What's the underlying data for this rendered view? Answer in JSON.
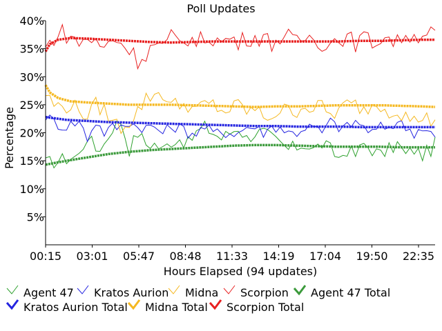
{
  "chart_data": {
    "type": "line",
    "title": "Poll Updates",
    "xlabel": "Hours Elapsed (94 updates)",
    "ylabel": "Percentage",
    "xlim": [
      0,
      93
    ],
    "ylim": [
      0,
      40
    ],
    "grid": false,
    "legend_placement": "bottom",
    "x_tick_labels": [
      "00:15",
      "03:01",
      "05:47",
      "08:48",
      "11:33",
      "14:19",
      "17:04",
      "19:50",
      "22:35"
    ],
    "y_tick_labels": [
      "5%",
      "10%",
      "15%",
      "20%",
      "25%",
      "30%",
      "35%",
      "40%"
    ],
    "y_tick_values": [
      5,
      10,
      15,
      20,
      25,
      30,
      35,
      40
    ],
    "series": [
      {
        "name": "Agent 47",
        "style": "update",
        "color": "#2ca02c",
        "anchors": [
          [
            0,
            14.5
          ],
          [
            3,
            15
          ],
          [
            8,
            16
          ],
          [
            10,
            19.5
          ],
          [
            12,
            17
          ],
          [
            14,
            18
          ],
          [
            16,
            21
          ],
          [
            18,
            22
          ],
          [
            20,
            17
          ],
          [
            22,
            20
          ],
          [
            24,
            18
          ],
          [
            26,
            18
          ],
          [
            28,
            17
          ],
          [
            30,
            18.5
          ],
          [
            32,
            19
          ],
          [
            34,
            18
          ],
          [
            36,
            20
          ],
          [
            38,
            21
          ],
          [
            40,
            20
          ],
          [
            42,
            19
          ],
          [
            44,
            20
          ],
          [
            46,
            21
          ],
          [
            48,
            19
          ],
          [
            50,
            20
          ],
          [
            52,
            20
          ],
          [
            54,
            19
          ],
          [
            56,
            18
          ],
          [
            58,
            17
          ],
          [
            60,
            17.5
          ],
          [
            62,
            18
          ],
          [
            64,
            17
          ],
          [
            66,
            18
          ],
          [
            68,
            17
          ],
          [
            70,
            15.5
          ],
          [
            72,
            17
          ],
          [
            74,
            16
          ],
          [
            76,
            18
          ],
          [
            78,
            17
          ],
          [
            80,
            16
          ],
          [
            82,
            17
          ],
          [
            84,
            18
          ],
          [
            86,
            16
          ],
          [
            88,
            17
          ],
          [
            90,
            16
          ],
          [
            92,
            17
          ],
          [
            93,
            18
          ]
        ],
        "jitter": 1.3
      },
      {
        "name": "Kratos Aurion",
        "style": "update",
        "color": "#2424e0",
        "anchors": [
          [
            0,
            23
          ],
          [
            2,
            22
          ],
          [
            4,
            21
          ],
          [
            6,
            21.5
          ],
          [
            8,
            22
          ],
          [
            10,
            19
          ],
          [
            12,
            22
          ],
          [
            14,
            20
          ],
          [
            16,
            21
          ],
          [
            18,
            21
          ],
          [
            20,
            22
          ],
          [
            22,
            21
          ],
          [
            24,
            21
          ],
          [
            26,
            21
          ],
          [
            28,
            20
          ],
          [
            30,
            21
          ],
          [
            32,
            21
          ],
          [
            34,
            20
          ],
          [
            36,
            20
          ],
          [
            38,
            21
          ],
          [
            40,
            20
          ],
          [
            42,
            20
          ],
          [
            44,
            20
          ],
          [
            46,
            20
          ],
          [
            48,
            21
          ],
          [
            50,
            21
          ],
          [
            52,
            20
          ],
          [
            54,
            21
          ],
          [
            56,
            21
          ],
          [
            58,
            20
          ],
          [
            60,
            20
          ],
          [
            62,
            21
          ],
          [
            64,
            21
          ],
          [
            66,
            20
          ],
          [
            68,
            22
          ],
          [
            70,
            21
          ],
          [
            72,
            21
          ],
          [
            74,
            22
          ],
          [
            76,
            21
          ],
          [
            78,
            20
          ],
          [
            80,
            21
          ],
          [
            82,
            21
          ],
          [
            84,
            22
          ],
          [
            86,
            21
          ],
          [
            88,
            20
          ],
          [
            90,
            21
          ],
          [
            92,
            20
          ],
          [
            93,
            19
          ]
        ],
        "jitter": 1.0
      },
      {
        "name": "Midna",
        "style": "update",
        "color": "#f5b820",
        "anchors": [
          [
            0,
            27
          ],
          [
            2,
            25
          ],
          [
            4,
            24.5
          ],
          [
            6,
            25
          ],
          [
            8,
            24
          ],
          [
            10,
            23
          ],
          [
            12,
            25
          ],
          [
            14,
            24
          ],
          [
            16,
            22
          ],
          [
            18,
            21
          ],
          [
            20,
            22
          ],
          [
            22,
            24
          ],
          [
            24,
            26
          ],
          [
            26,
            27
          ],
          [
            28,
            27
          ],
          [
            30,
            25
          ],
          [
            32,
            25
          ],
          [
            34,
            25
          ],
          [
            36,
            24
          ],
          [
            38,
            25
          ],
          [
            40,
            25
          ],
          [
            42,
            24
          ],
          [
            44,
            24
          ],
          [
            46,
            25
          ],
          [
            48,
            24
          ],
          [
            50,
            24
          ],
          [
            52,
            23
          ],
          [
            54,
            23
          ],
          [
            56,
            24
          ],
          [
            58,
            24
          ],
          [
            60,
            24
          ],
          [
            62,
            25
          ],
          [
            64,
            24
          ],
          [
            66,
            25
          ],
          [
            68,
            23
          ],
          [
            70,
            24
          ],
          [
            72,
            25
          ],
          [
            74,
            25
          ],
          [
            76,
            24
          ],
          [
            78,
            25
          ],
          [
            80,
            25
          ],
          [
            82,
            24
          ],
          [
            84,
            24
          ],
          [
            86,
            23
          ],
          [
            88,
            22
          ],
          [
            90,
            23
          ],
          [
            92,
            22
          ],
          [
            93,
            23
          ]
        ],
        "jitter": 1.4
      },
      {
        "name": "Scorpion",
        "style": "update",
        "color": "#e82020",
        "anchors": [
          [
            0,
            35
          ],
          [
            2,
            37
          ],
          [
            4,
            38
          ],
          [
            6,
            37
          ],
          [
            8,
            36
          ],
          [
            10,
            37
          ],
          [
            12,
            36
          ],
          [
            14,
            35
          ],
          [
            16,
            37
          ],
          [
            18,
            36
          ],
          [
            20,
            35
          ],
          [
            22,
            33
          ],
          [
            24,
            34
          ],
          [
            26,
            36
          ],
          [
            28,
            35
          ],
          [
            30,
            37
          ],
          [
            32,
            36
          ],
          [
            34,
            37
          ],
          [
            36,
            36
          ],
          [
            38,
            37
          ],
          [
            40,
            37
          ],
          [
            42,
            36
          ],
          [
            44,
            37
          ],
          [
            46,
            36
          ],
          [
            48,
            37
          ],
          [
            50,
            37
          ],
          [
            52,
            37
          ],
          [
            54,
            36
          ],
          [
            56,
            37
          ],
          [
            58,
            37
          ],
          [
            60,
            36
          ],
          [
            62,
            37
          ],
          [
            64,
            37
          ],
          [
            66,
            36
          ],
          [
            68,
            36
          ],
          [
            70,
            37
          ],
          [
            72,
            37
          ],
          [
            74,
            36
          ],
          [
            76,
            37
          ],
          [
            78,
            36
          ],
          [
            80,
            37
          ],
          [
            82,
            37
          ],
          [
            84,
            36
          ],
          [
            86,
            38
          ],
          [
            88,
            37
          ],
          [
            90,
            38
          ],
          [
            92,
            38
          ],
          [
            93,
            37
          ]
        ],
        "jitter": 1.6
      },
      {
        "name": "Agent 47 Total",
        "style": "total",
        "color": "#3b9a3b",
        "anchors": [
          [
            0,
            14.3
          ],
          [
            5,
            15.0
          ],
          [
            10,
            15.6
          ],
          [
            15,
            16.2
          ],
          [
            20,
            16.6
          ],
          [
            25,
            16.9
          ],
          [
            30,
            17.1
          ],
          [
            35,
            17.3
          ],
          [
            40,
            17.5
          ],
          [
            45,
            17.7
          ],
          [
            50,
            17.8
          ],
          [
            55,
            17.8
          ],
          [
            60,
            17.7
          ],
          [
            65,
            17.6
          ],
          [
            70,
            17.5
          ],
          [
            75,
            17.5
          ],
          [
            80,
            17.5
          ],
          [
            85,
            17.4
          ],
          [
            90,
            17.4
          ],
          [
            93,
            17.4
          ]
        ]
      },
      {
        "name": "Kratos Aurion Total",
        "style": "total",
        "color": "#2424e0",
        "anchors": [
          [
            0,
            22.8
          ],
          [
            5,
            22.3
          ],
          [
            10,
            22.1
          ],
          [
            15,
            21.9
          ],
          [
            20,
            21.8
          ],
          [
            25,
            21.7
          ],
          [
            30,
            21.6
          ],
          [
            35,
            21.5
          ],
          [
            40,
            21.4
          ],
          [
            45,
            21.3
          ],
          [
            50,
            21.2
          ],
          [
            55,
            21.2
          ],
          [
            60,
            21.1
          ],
          [
            65,
            21.1
          ],
          [
            70,
            21.1
          ],
          [
            75,
            21.0
          ],
          [
            80,
            21.0
          ],
          [
            85,
            21.0
          ],
          [
            90,
            21.0
          ],
          [
            93,
            21.0
          ]
        ]
      },
      {
        "name": "Midna Total",
        "style": "total",
        "color": "#f5b820",
        "anchors": [
          [
            0,
            28.5
          ],
          [
            1,
            27.2
          ],
          [
            3,
            26.2
          ],
          [
            6,
            25.6
          ],
          [
            10,
            25.4
          ],
          [
            15,
            25.2
          ],
          [
            20,
            25.0
          ],
          [
            25,
            25.0
          ],
          [
            30,
            25.0
          ],
          [
            35,
            24.9
          ],
          [
            40,
            24.8
          ],
          [
            45,
            24.7
          ],
          [
            50,
            24.6
          ],
          [
            55,
            24.7
          ],
          [
            60,
            24.7
          ],
          [
            65,
            24.8
          ],
          [
            70,
            24.9
          ],
          [
            75,
            24.9
          ],
          [
            80,
            24.9
          ],
          [
            85,
            24.8
          ],
          [
            90,
            24.7
          ],
          [
            93,
            24.6
          ]
        ]
      },
      {
        "name": "Scorpion Total",
        "style": "total",
        "color": "#e82020",
        "anchors": [
          [
            0,
            34.5
          ],
          [
            1,
            35.8
          ],
          [
            3,
            36.6
          ],
          [
            6,
            36.9
          ],
          [
            10,
            36.8
          ],
          [
            15,
            36.6
          ],
          [
            20,
            36.4
          ],
          [
            25,
            36.2
          ],
          [
            30,
            36.1
          ],
          [
            35,
            36.2
          ],
          [
            40,
            36.3
          ],
          [
            45,
            36.3
          ],
          [
            50,
            36.3
          ],
          [
            55,
            36.3
          ],
          [
            60,
            36.3
          ],
          [
            65,
            36.3
          ],
          [
            70,
            36.3
          ],
          [
            75,
            36.4
          ],
          [
            80,
            36.4
          ],
          [
            85,
            36.5
          ],
          [
            90,
            36.6
          ],
          [
            93,
            36.6
          ]
        ]
      }
    ]
  }
}
